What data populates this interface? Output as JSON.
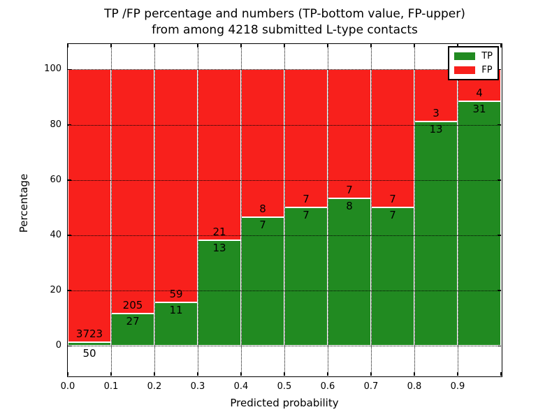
{
  "chart_data": {
    "type": "bar",
    "subtype": "stacked-percentage-histogram",
    "title_line1": "TP /FP percentage and numbers (TP-bottom value, FP-upper)",
    "title_line2": "from among 4218 submitted L-type contacts",
    "total_contacts": 4218,
    "xlabel": "Predicted probability",
    "ylabel": "Percentage",
    "bin_starts": [
      0.0,
      0.1,
      0.2,
      0.3,
      0.4,
      0.5,
      0.6,
      0.7,
      0.8,
      0.9
    ],
    "bin_width": 0.1,
    "series": [
      {
        "name": "TP",
        "color": "#218a21",
        "counts": [
          50,
          27,
          11,
          13,
          7,
          7,
          8,
          7,
          13,
          31
        ],
        "percent": [
          1.33,
          11.64,
          15.71,
          38.24,
          46.67,
          50.0,
          53.33,
          50.0,
          81.25,
          88.57
        ]
      },
      {
        "name": "FP",
        "color": "#f8201c",
        "counts": [
          3723,
          205,
          59,
          21,
          8,
          7,
          7,
          7,
          3,
          4
        ],
        "percent": [
          98.67,
          88.36,
          84.29,
          61.76,
          53.33,
          50.0,
          46.67,
          50.0,
          18.75,
          11.43
        ]
      }
    ],
    "x_tick_labels": [
      "0.0",
      "0.1",
      "0.2",
      "0.3",
      "0.4",
      "0.5",
      "0.6",
      "0.7",
      "0.8",
      "0.9"
    ],
    "y_tick_values": [
      0,
      20,
      40,
      60,
      80,
      100
    ],
    "xlim": [
      0.0,
      1.0
    ],
    "ylim": [
      -10.8,
      109.2
    ],
    "grid": {
      "on": true,
      "style": "dotted",
      "color": "#000000",
      "above_bars": true
    },
    "legend": {
      "position": "upper-right",
      "items": [
        {
          "label": "TP",
          "color": "#218a21"
        },
        {
          "label": "FP",
          "color": "#f8201c"
        }
      ]
    }
  }
}
